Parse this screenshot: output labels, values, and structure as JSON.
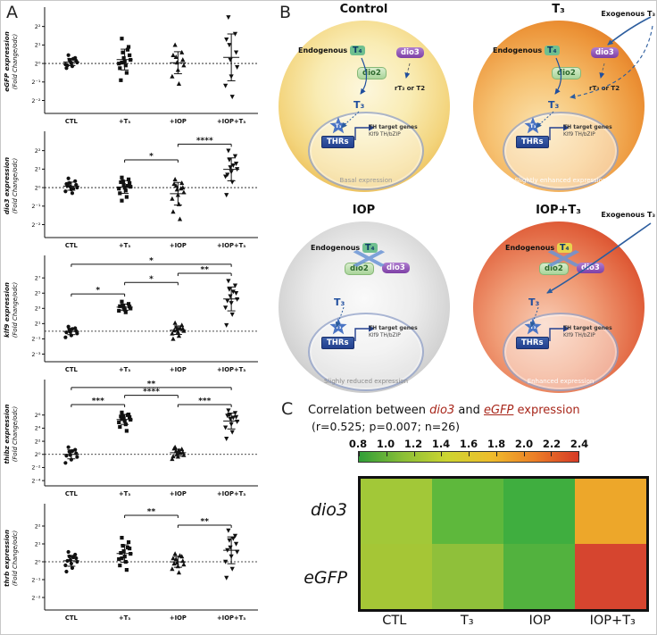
{
  "figure": {
    "panel_a_label": "A",
    "panel_b_label": "B",
    "panel_c_label": "C"
  },
  "chart_data": [
    {
      "type": "scatter",
      "gene": "eGFP",
      "ylabel_gene": "eGFP expression",
      "ylabel_unit": "(Fold Change/odc)",
      "categories": [
        "CTL",
        "+T₃",
        "+IOP",
        "+IOP+T₃"
      ],
      "ylim": [
        -2.7,
        2.9
      ],
      "yticks": [
        -2,
        -1,
        0,
        1,
        2
      ],
      "groups": [
        {
          "name": "CTL",
          "marker": "circle",
          "values": [
            0.45,
            0.3,
            0.2,
            0.15,
            0.1,
            0.05,
            0,
            -0.05,
            -0.15,
            -0.25,
            0.25,
            -0.1
          ]
        },
        {
          "name": "+T₃",
          "marker": "square",
          "values": [
            1.35,
            0.9,
            0.6,
            0.45,
            0.3,
            0.2,
            0.1,
            0,
            -0.1,
            -0.25,
            -0.5,
            -0.9,
            0.75,
            0.05
          ]
        },
        {
          "name": "+IOP",
          "marker": "triangle-up",
          "values": [
            1.0,
            0.6,
            0.35,
            0.2,
            0.05,
            -0.1,
            -0.35,
            -0.7,
            -1.1,
            0.45
          ]
        },
        {
          "name": "+IOP+T₃",
          "marker": "triangle-down",
          "values": [
            2.5,
            1.6,
            1.0,
            0.6,
            0.2,
            -0.2,
            -0.7,
            -1.2,
            -1.8,
            1.3
          ]
        }
      ],
      "sig": []
    },
    {
      "type": "scatter",
      "gene": "dio3",
      "ylabel_gene": "dio3 expression",
      "ylabel_unit": "(Fold Change/odc)",
      "categories": [
        "CTL",
        "+T₃",
        "+IOP",
        "+IOP+T₃"
      ],
      "ylim": [
        -2.7,
        2.9
      ],
      "yticks": [
        -2,
        -1,
        0,
        1,
        2
      ],
      "groups": [
        {
          "name": "CTL",
          "marker": "circle",
          "values": [
            0.5,
            0.35,
            0.25,
            0.15,
            0.05,
            0,
            -0.1,
            -0.2,
            -0.3,
            0.2,
            -0.05,
            0.1
          ]
        },
        {
          "name": "+T₃",
          "marker": "square",
          "values": [
            0.55,
            0.45,
            0.35,
            0.25,
            0.15,
            0.05,
            0,
            -0.05,
            -0.15,
            -0.3,
            -0.5,
            0.3,
            0.1,
            -0.7
          ]
        },
        {
          "name": "+IOP",
          "marker": "triangle-up",
          "values": [
            0.45,
            0.25,
            0.1,
            0,
            -0.1,
            -0.25,
            -0.4,
            -0.6,
            -0.9,
            -1.3,
            -1.7,
            0.2,
            -0.05
          ]
        },
        {
          "name": "+IOP+T₃",
          "marker": "triangle-down",
          "values": [
            2.0,
            1.7,
            1.5,
            1.3,
            1.1,
            1.0,
            0.85,
            0.6,
            0.3,
            -0.4,
            1.2,
            0.7
          ]
        }
      ],
      "sig": [
        {
          "g1": 1,
          "g2": 2,
          "y": 1.5,
          "label": "*"
        },
        {
          "g1": 2,
          "g2": 3,
          "y": 2.35,
          "label": "****"
        }
      ]
    },
    {
      "type": "scatter",
      "gene": "klf9",
      "ylabel_gene": "klf9 expression",
      "ylabel_unit": "(Fold Change/odc)",
      "categories": [
        "CTL",
        "+T₃",
        "+IOP",
        "+IOP+T₃"
      ],
      "ylim": [
        -4.0,
        9.6
      ],
      "yticks": [
        -3,
        -1,
        1,
        3,
        5,
        7
      ],
      "groups": [
        {
          "name": "CTL",
          "marker": "circle",
          "values": [
            0.6,
            0.4,
            0.2,
            0.05,
            -0.1,
            -0.3,
            -0.55,
            -0.8,
            0.3,
            -0.15
          ]
        },
        {
          "name": "+T₃",
          "marker": "square",
          "values": [
            3.9,
            3.6,
            3.4,
            3.25,
            3.1,
            3.0,
            2.85,
            2.7,
            2.5,
            3.3
          ]
        },
        {
          "name": "+IOP",
          "marker": "triangle-up",
          "values": [
            1.1,
            0.8,
            0.55,
            0.35,
            0.2,
            0.05,
            -0.1,
            -0.3,
            -0.6,
            -1.0,
            0.45,
            0.1
          ]
        },
        {
          "name": "+IOP+T₃",
          "marker": "triangle-down",
          "values": [
            6.6,
            6.0,
            5.5,
            5.0,
            4.6,
            4.2,
            3.7,
            3.1,
            2.2,
            0.8,
            5.2,
            4.0
          ]
        }
      ],
      "sig": [
        {
          "g1": 0,
          "g2": 1,
          "y": 4.9,
          "label": "*"
        },
        {
          "g1": 1,
          "g2": 2,
          "y": 6.4,
          "label": "*"
        },
        {
          "g1": 2,
          "g2": 3,
          "y": 7.6,
          "label": "**"
        },
        {
          "g1": 0,
          "g2": 3,
          "y": 8.8,
          "label": "*"
        }
      ]
    },
    {
      "type": "scatter",
      "gene": "thibz",
      "ylabel_gene": "thibz expression",
      "ylabel_unit": "(Fold Change/odc)",
      "categories": [
        "CTL",
        "+T₃",
        "+IOP",
        "+IOP+T₃"
      ],
      "ylim": [
        -4.8,
        11.0
      ],
      "yticks": [
        -4,
        -2,
        0,
        2,
        4,
        6
      ],
      "groups": [
        {
          "name": "CTL",
          "marker": "circle",
          "values": [
            1.1,
            0.7,
            0.4,
            0.15,
            -0.1,
            -0.4,
            -0.8,
            -1.3,
            0.5,
            -0.2
          ]
        },
        {
          "name": "+T₃",
          "marker": "square",
          "values": [
            6.4,
            6.1,
            5.9,
            5.7,
            5.5,
            5.3,
            5.1,
            4.9,
            4.6,
            4.2,
            3.6,
            5.8,
            6.0,
            5.4
          ]
        },
        {
          "name": "+IOP",
          "marker": "triangle-up",
          "values": [
            1.1,
            0.8,
            0.5,
            0.3,
            0.1,
            -0.1,
            -0.35,
            -0.7,
            0.6,
            -0.3,
            0.2,
            0.9
          ]
        },
        {
          "name": "+IOP+T₃",
          "marker": "triangle-down",
          "values": [
            6.7,
            6.3,
            6.0,
            5.7,
            5.4,
            5.0,
            4.6,
            4.1,
            3.4,
            2.4,
            5.6,
            5.9
          ]
        }
      ],
      "sig": [
        {
          "g1": 0,
          "g2": 1,
          "y": 7.6,
          "label": "***"
        },
        {
          "g1": 1,
          "g2": 2,
          "y": 9.0,
          "label": "****"
        },
        {
          "g1": 2,
          "g2": 3,
          "y": 7.6,
          "label": "***"
        },
        {
          "g1": 0,
          "g2": 3,
          "y": 10.2,
          "label": "**"
        }
      ]
    },
    {
      "type": "scatter",
      "gene": "thrb",
      "ylabel_gene": "thrb expression",
      "ylabel_unit": "(Fold Change/odc)",
      "categories": [
        "CTL",
        "+T₃",
        "+IOP",
        "+IOP+T₃"
      ],
      "ylim": [
        -2.7,
        3.1
      ],
      "yticks": [
        -2,
        -1,
        0,
        1,
        2
      ],
      "groups": [
        {
          "name": "CTL",
          "marker": "circle",
          "values": [
            0.55,
            0.4,
            0.3,
            0.2,
            0.1,
            0,
            -0.1,
            -0.2,
            -0.35,
            -0.55,
            0.25,
            0.05
          ]
        },
        {
          "name": "+T₃",
          "marker": "square",
          "values": [
            1.35,
            1.1,
            0.9,
            0.75,
            0.6,
            0.45,
            0.3,
            0.15,
            0,
            -0.2,
            -0.45,
            0.5,
            0.8,
            0.2
          ]
        },
        {
          "name": "+IOP",
          "marker": "triangle-up",
          "values": [
            0.45,
            0.3,
            0.15,
            0.05,
            -0.05,
            -0.15,
            -0.25,
            -0.4,
            -0.6,
            0.2,
            0.35,
            -0.1
          ]
        },
        {
          "name": "+IOP+T₃",
          "marker": "triangle-down",
          "values": [
            1.75,
            1.45,
            1.2,
            1.0,
            0.8,
            0.55,
            0.3,
            0,
            -0.4,
            -0.9,
            1.3,
            0.65
          ]
        }
      ],
      "sig": [
        {
          "g1": 1,
          "g2": 2,
          "y": 2.6,
          "label": "**"
        },
        {
          "g1": 2,
          "g2": 3,
          "y": 2.05,
          "label": "**"
        }
      ]
    },
    {
      "type": "heatmap",
      "title": "Correlation between dio3 and eGFP expression",
      "rows": [
        "dio3",
        "eGFP"
      ],
      "columns": [
        "CTL",
        "T₃",
        "IOP",
        "IOP+T₃"
      ],
      "values": [
        [
          1.25,
          1.0,
          0.9,
          2.0
        ],
        [
          1.3,
          1.2,
          1.0,
          2.3
        ]
      ],
      "colors": [
        [
          "#a2c838",
          "#5eb83c",
          "#3fae3f",
          "#eda72a"
        ],
        [
          "#a5c636",
          "#8fc03a",
          "#52b23e",
          "#d6452f"
        ]
      ],
      "colorbar_ticks": [
        0.8,
        1.0,
        1.2,
        1.4,
        1.6,
        1.8,
        2.0,
        2.2,
        2.4
      ],
      "colorbar_colors": [
        "#2f9e38",
        "#8abf37",
        "#cdd531",
        "#eebd2c",
        "#ec7f27",
        "#d63a26"
      ],
      "colorbar_range": [
        0.8,
        2.4
      ]
    }
  ],
  "panel_b": {
    "cells": [
      {
        "id": "control",
        "title": "Control",
        "endogenous_label": "Endogenous",
        "t4_label": "T₄",
        "dio2_label": "dio2",
        "dio3_label": "dio3",
        "rt3_label": "rT₃ or T2",
        "t3_label": "T₃",
        "thrs_label": "THRs",
        "target_line1": "TH target genes",
        "target_line2": "Klf9 TH/bZIP",
        "expression_text": "Basal expression",
        "exogenous_label": null,
        "crossed": false
      },
      {
        "id": "t3",
        "title": "T₃",
        "endogenous_label": "Endogenous",
        "t4_label": "T₄",
        "dio2_label": "dio2",
        "dio3_label": "dio3",
        "rt3_label": "rT₃ or T2",
        "t3_label": "T₃",
        "thrs_label": "THRs",
        "target_line1": "TH target genes",
        "target_line2": "Klf9 TH/bZIP",
        "expression_text": "Slightly enhanced  expression",
        "exogenous_label": "Exogenous T₃",
        "crossed": false
      },
      {
        "id": "iop",
        "title": "IOP",
        "endogenous_label": "Endogenous",
        "t4_label": "T₄",
        "dio2_label": "dio2",
        "dio3_label": "dio3",
        "rt3_label": null,
        "t3_label": "T₃",
        "thrs_label": "THRs",
        "target_line1": "TH target genes",
        "target_line2": "Klf9 TH/bZIP",
        "expression_text": "Slighly reduced expression",
        "exogenous_label": null,
        "crossed": true
      },
      {
        "id": "iopt3",
        "title": "IOP+T₃",
        "endogenous_label": "Endogenous",
        "t4_label": "T₄",
        "dio2_label": "dio2",
        "dio3_label": "dio3",
        "rt3_label": null,
        "t3_label": "T₃",
        "thrs_label": "THRs",
        "target_line1": "TH target genes",
        "target_line2": "Klf9 TH/bZIP",
        "expression_text": "Enhanced  expression",
        "exogenous_label": "Exogenous T₃",
        "crossed": true
      }
    ]
  },
  "panel_c": {
    "title": {
      "prefix": "Correlation between ",
      "gene1": "dio3",
      "middle": "  and ",
      "gene2": "eGFP",
      "suffix": " expression"
    },
    "stats_line": "(r=0.525;  p=0.007; n=26)"
  }
}
